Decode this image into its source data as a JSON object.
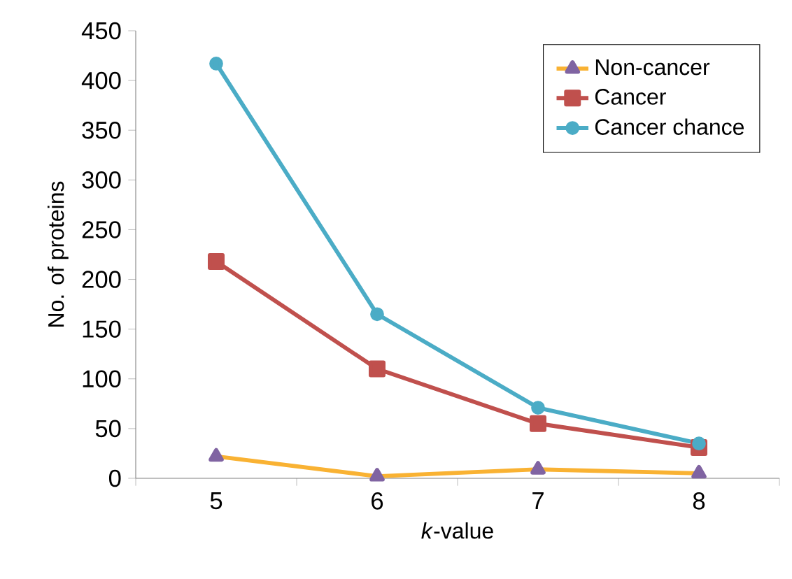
{
  "chart_data": {
    "type": "line",
    "xlabel": "*k*-value",
    "ylabel": "No. of proteins",
    "categories": [
      "5",
      "6",
      "7",
      "8"
    ],
    "series": [
      {
        "name": "Non-cancer",
        "color": "#f9b233",
        "colors": [
          "#8064a2",
          "#8064a2",
          "#8064a2",
          "#8064a2"
        ],
        "marker": "triangle",
        "values": [
          22,
          2,
          9,
          5
        ]
      },
      {
        "name": "Cancer",
        "color": "#c0504d",
        "marker": "square",
        "values": [
          218,
          110,
          55,
          31
        ]
      },
      {
        "name": "Cancer chance",
        "color": "#4bacc6",
        "marker": "circle",
        "values": [
          417,
          165,
          71,
          35
        ]
      }
    ],
    "ylim": [
      0,
      450
    ],
    "yticks": [
      0,
      50,
      100,
      150,
      200,
      250,
      300,
      350,
      400,
      450
    ],
    "legend": "top right",
    "grid": false
  }
}
